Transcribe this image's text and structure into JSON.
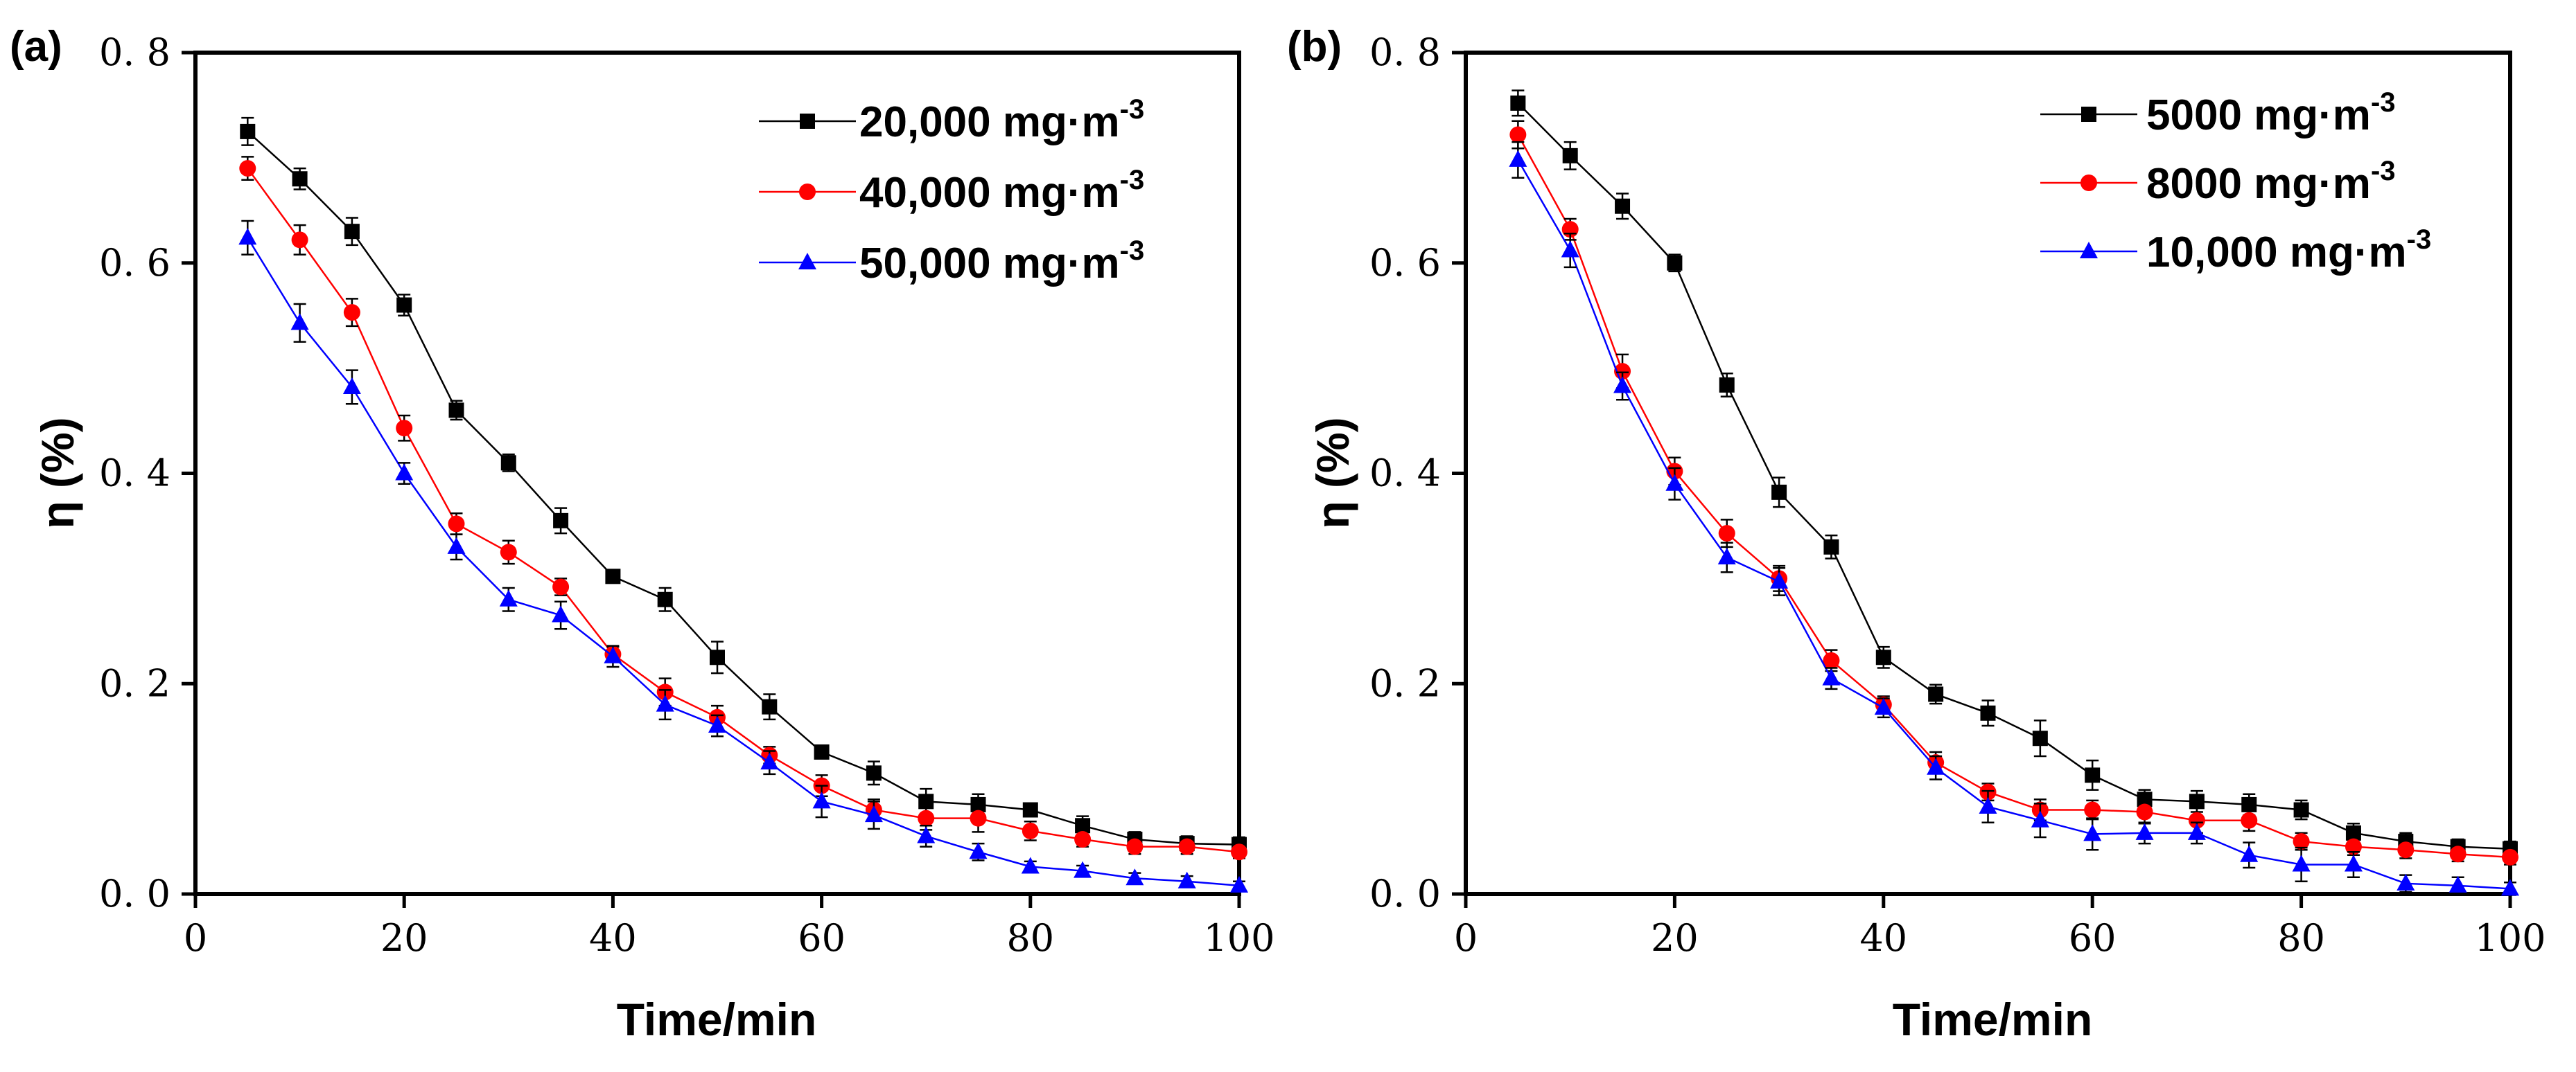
{
  "chart_data": [
    {
      "type": "line",
      "panel_label": "(a)",
      "xlabel": "Time/min",
      "ylabel": "η (%)",
      "xlim": [
        0,
        100
      ],
      "ylim": [
        0,
        0.8
      ],
      "xticks": [
        0,
        20,
        40,
        60,
        80,
        100
      ],
      "yticks": [
        0.0,
        0.2,
        0.4,
        0.6,
        0.8
      ],
      "ytick_labels": [
        "0. 0",
        "0. 2",
        "0. 4",
        "0. 6",
        "0. 8"
      ],
      "legend_position": "top-right",
      "x": [
        5,
        10,
        15,
        20,
        25,
        30,
        35,
        40,
        45,
        50,
        55,
        60,
        65,
        70,
        75,
        80,
        85,
        90,
        95,
        100
      ],
      "series": [
        {
          "name": "20,000 mg·m",
          "sup": "-3",
          "color": "#000000",
          "marker": "square",
          "values": [
            0.725,
            0.68,
            0.63,
            0.56,
            0.46,
            0.41,
            0.355,
            0.302,
            0.28,
            0.225,
            0.178,
            0.135,
            0.115,
            0.088,
            0.085,
            0.08,
            0.065,
            0.052,
            0.048,
            0.047
          ],
          "errors": [
            0.013,
            0.01,
            0.013,
            0.01,
            0.009,
            0.008,
            0.012,
            0.006,
            0.011,
            0.015,
            0.012,
            0.006,
            0.011,
            0.012,
            0.01,
            0.006,
            0.009,
            0.007,
            0.007,
            0.007
          ]
        },
        {
          "name": "40,000 mg·m",
          "sup": "-3",
          "color": "#ff0000",
          "marker": "circle",
          "values": [
            0.69,
            0.622,
            0.553,
            0.443,
            0.352,
            0.325,
            0.292,
            0.228,
            0.192,
            0.168,
            0.132,
            0.103,
            0.08,
            0.072,
            0.072,
            0.06,
            0.052,
            0.045,
            0.045,
            0.04
          ],
          "errors": [
            0.011,
            0.014,
            0.013,
            0.012,
            0.01,
            0.011,
            0.008,
            0.007,
            0.013,
            0.011,
            0.008,
            0.01,
            0.01,
            0.011,
            0.013,
            0.009,
            0.007,
            0.007,
            0.007,
            0.006
          ]
        },
        {
          "name": "50,000 mg·m",
          "sup": "-3",
          "color": "#0000ff",
          "marker": "triangle",
          "values": [
            0.624,
            0.543,
            0.482,
            0.4,
            0.33,
            0.28,
            0.265,
            0.226,
            0.18,
            0.16,
            0.125,
            0.088,
            0.075,
            0.055,
            0.04,
            0.026,
            0.022,
            0.015,
            0.012,
            0.008
          ],
          "errors": [
            0.016,
            0.018,
            0.016,
            0.01,
            0.012,
            0.011,
            0.013,
            0.01,
            0.014,
            0.01,
            0.011,
            0.015,
            0.013,
            0.01,
            0.008,
            0.005,
            0.005,
            0.005,
            0.005,
            0.004
          ]
        }
      ]
    },
    {
      "type": "line",
      "panel_label": "(b)",
      "xlabel": "Time/min",
      "ylabel": "η (%)",
      "xlim": [
        0,
        100
      ],
      "ylim": [
        0,
        0.8
      ],
      "xticks": [
        0,
        20,
        40,
        60,
        80,
        100
      ],
      "yticks": [
        0.0,
        0.2,
        0.4,
        0.6,
        0.8
      ],
      "ytick_labels": [
        "0. 0",
        "0. 2",
        "0. 4",
        "0. 6",
        "0. 8"
      ],
      "legend_position": "top-right",
      "x": [
        5,
        10,
        15,
        20,
        25,
        30,
        35,
        40,
        45,
        50,
        55,
        60,
        65,
        70,
        75,
        80,
        85,
        90,
        95,
        100
      ],
      "series": [
        {
          "name": "5000 mg·m",
          "sup": "-3",
          "color": "#000000",
          "marker": "square",
          "values": [
            0.752,
            0.702,
            0.654,
            0.6,
            0.484,
            0.382,
            0.33,
            0.225,
            0.19,
            0.172,
            0.148,
            0.113,
            0.09,
            0.088,
            0.085,
            0.08,
            0.058,
            0.05,
            0.045,
            0.043
          ],
          "errors": [
            0.012,
            0.013,
            0.012,
            0.008,
            0.011,
            0.014,
            0.011,
            0.01,
            0.009,
            0.012,
            0.017,
            0.014,
            0.009,
            0.01,
            0.01,
            0.009,
            0.009,
            0.008,
            0.007,
            0.007
          ]
        },
        {
          "name": "8000 mg·m",
          "sup": "-3",
          "color": "#ff0000",
          "marker": "circle",
          "values": [
            0.722,
            0.632,
            0.497,
            0.402,
            0.343,
            0.3,
            0.222,
            0.18,
            0.125,
            0.097,
            0.08,
            0.08,
            0.078,
            0.07,
            0.07,
            0.05,
            0.045,
            0.042,
            0.038,
            0.035
          ],
          "errors": [
            0.013,
            0.01,
            0.016,
            0.013,
            0.013,
            0.012,
            0.01,
            0.008,
            0.01,
            0.008,
            0.01,
            0.009,
            0.011,
            0.012,
            0.01,
            0.008,
            0.008,
            0.008,
            0.007,
            0.007
          ]
        },
        {
          "name": "10,000 mg·m",
          "sup": "-3",
          "color": "#0000ff",
          "marker": "triangle",
          "values": [
            0.698,
            0.612,
            0.483,
            0.39,
            0.32,
            0.297,
            0.205,
            0.177,
            0.12,
            0.083,
            0.07,
            0.057,
            0.058,
            0.058,
            0.037,
            0.028,
            0.028,
            0.01,
            0.008,
            0.005
          ],
          "errors": [
            0.017,
            0.016,
            0.013,
            0.015,
            0.014,
            0.013,
            0.01,
            0.009,
            0.011,
            0.015,
            0.016,
            0.015,
            0.01,
            0.01,
            0.012,
            0.016,
            0.012,
            0.008,
            0.008,
            0.006
          ]
        }
      ]
    }
  ]
}
